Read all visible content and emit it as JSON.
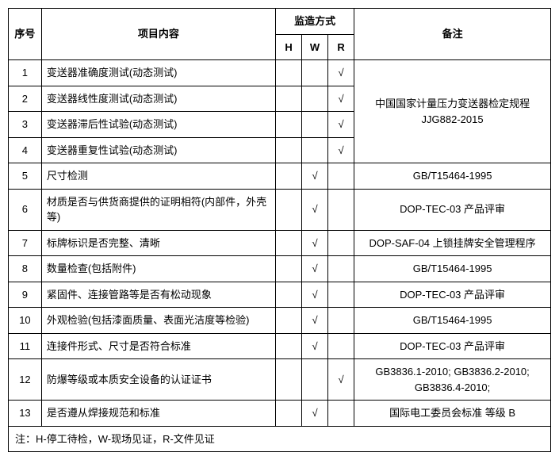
{
  "headers": {
    "idx": "序号",
    "content": "项目内容",
    "supervision": "监造方式",
    "h": "H",
    "w": "W",
    "r": "R",
    "remark": "备注"
  },
  "check": "√",
  "rows": [
    {
      "idx": "1",
      "content": "变送器准确度测试(动态测试)",
      "h": "",
      "w": "",
      "r": "√"
    },
    {
      "idx": "2",
      "content": "变送器线性度测试(动态测试)",
      "h": "",
      "w": "",
      "r": "√"
    },
    {
      "idx": "3",
      "content": "变送器滞后性试验(动态测试)",
      "h": "",
      "w": "",
      "r": "√"
    },
    {
      "idx": "4",
      "content": "变送器重复性试验(动态测试)",
      "h": "",
      "w": "",
      "r": "√"
    },
    {
      "idx": "5",
      "content": "尺寸检测",
      "h": "",
      "w": "√",
      "r": "",
      "remark": "GB/T15464-1995"
    },
    {
      "idx": "6",
      "content": "材质是否与供货商提供的证明相符(内部件，外壳等)",
      "h": "",
      "w": "√",
      "r": "",
      "remark": "DOP-TEC-03 产品评审"
    },
    {
      "idx": "7",
      "content": "标牌标识是否完整、清晰",
      "h": "",
      "w": "√",
      "r": "",
      "remark": "DOP-SAF-04 上锁挂牌安全管理程序"
    },
    {
      "idx": "8",
      "content": "数量检查(包括附件)",
      "h": "",
      "w": "√",
      "r": "",
      "remark": "GB/T15464-1995"
    },
    {
      "idx": "9",
      "content": "紧固件、连接管路等是否有松动现象",
      "h": "",
      "w": "√",
      "r": "",
      "remark": "DOP-TEC-03 产品评审"
    },
    {
      "idx": "10",
      "content": "外观检验(包括漆面质量、表面光洁度等检验)",
      "h": "",
      "w": "√",
      "r": "",
      "remark": "GB/T15464-1995"
    },
    {
      "idx": "11",
      "content": "连接件形式、尺寸是否符合标准",
      "h": "",
      "w": "√",
      "r": "",
      "remark": "DOP-TEC-03 产品评审"
    },
    {
      "idx": "12",
      "content": "防爆等级或本质安全设备的认证证书",
      "h": "",
      "w": "",
      "r": "√",
      "remark": "GB3836.1-2010; GB3836.2-2010; GB3836.4-2010;"
    },
    {
      "idx": "13",
      "content": "是否遵从焊接规范和标准",
      "h": "",
      "w": "√",
      "r": "",
      "remark": "国际电工委员会标准 等级 B"
    }
  ],
  "merged_remark_1_4": "中国国家计量压力变送器检定规程 JJG882-2015",
  "footnote": "注：H-停工待检，W-现场见证，R-文件见证"
}
